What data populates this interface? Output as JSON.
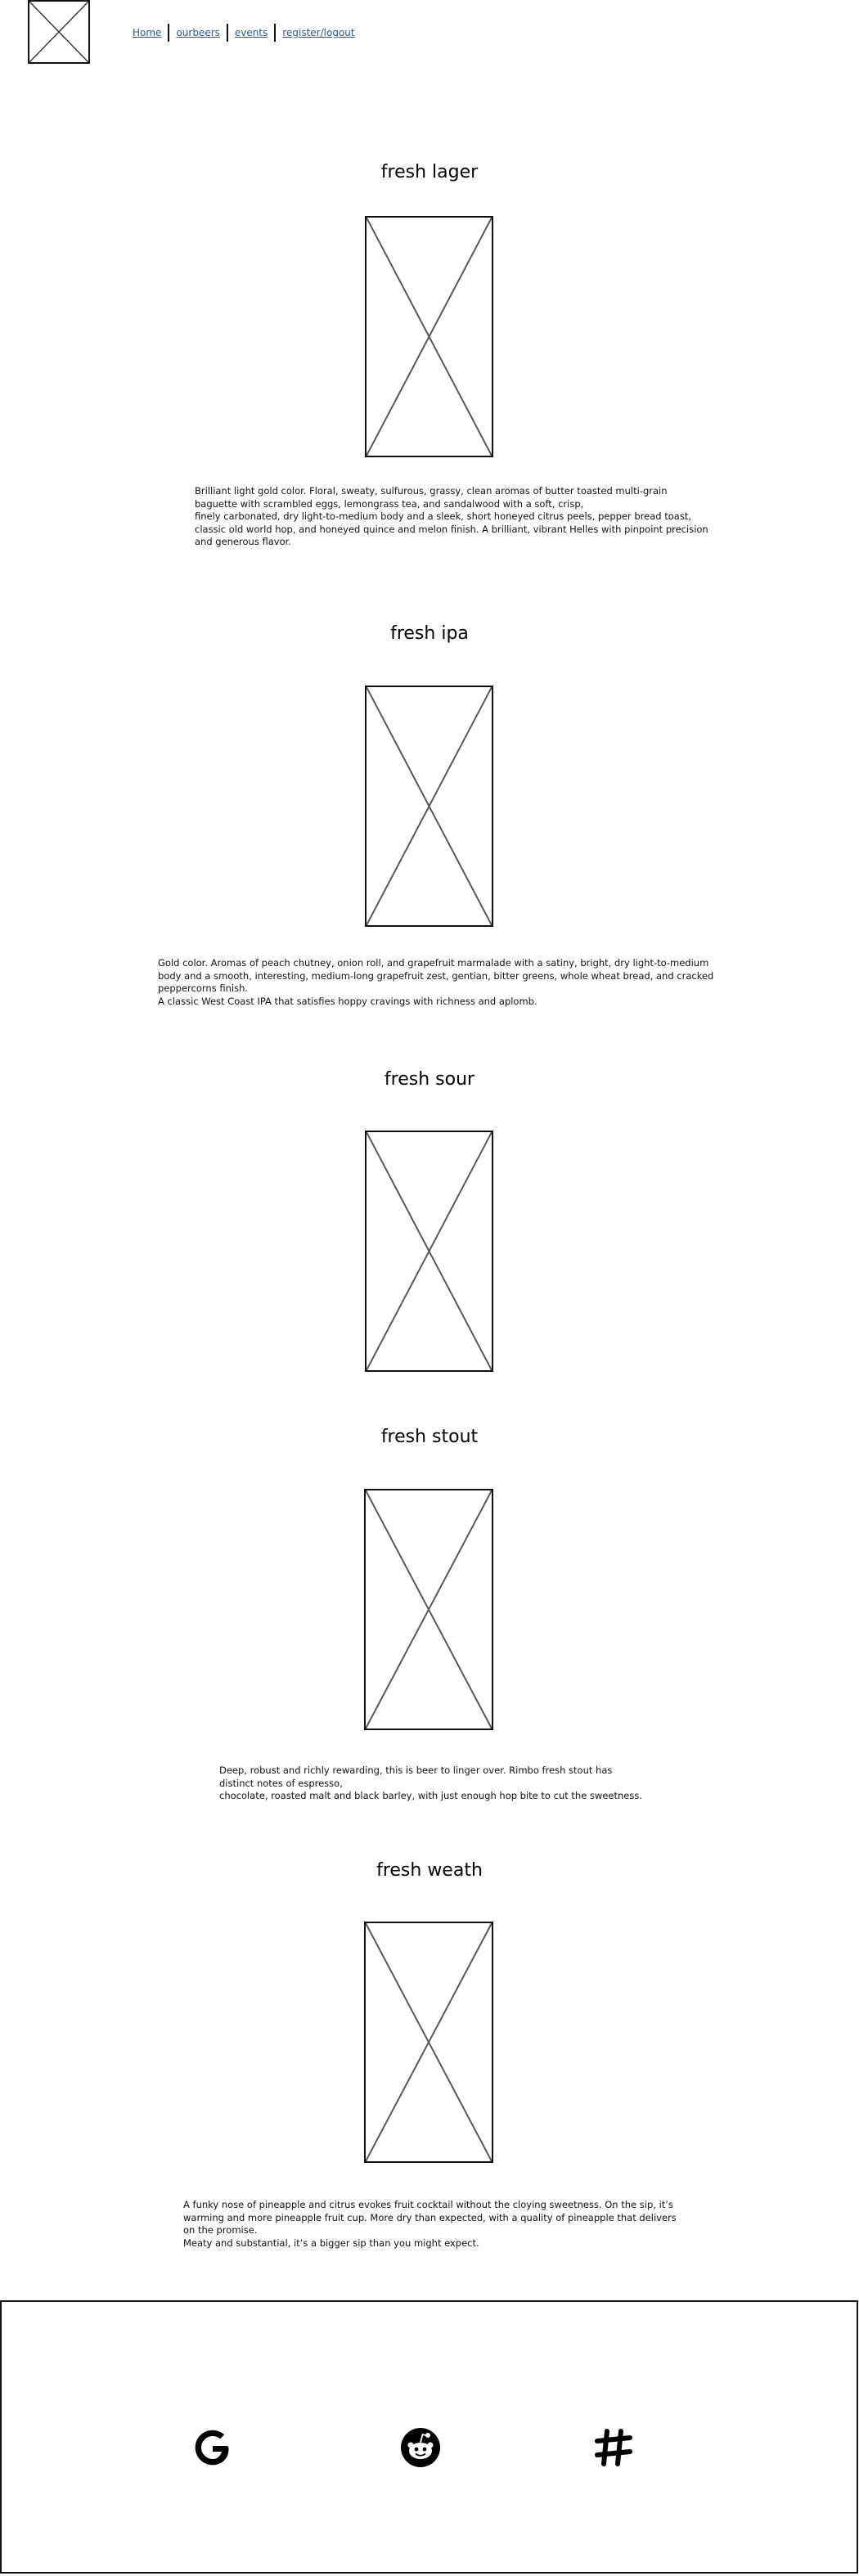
{
  "header": {
    "nav": [
      {
        "label": "Home"
      },
      {
        "label": "ourbeers"
      },
      {
        "label": "events"
      },
      {
        "label": "register/logout"
      }
    ]
  },
  "beers": [
    {
      "title": "fresh lager",
      "description": [
        "Brilliant light gold color. Floral, sweaty, sulfurous, grassy, clean aromas of butter toasted multi-grain baguette with scrambled eggs, lemongrass tea, and sandalwood with a soft, crisp,",
        "finely carbonated, dry light-to-medium body and a sleek, short honeyed citrus peels, pepper bread toast, classic old world hop, and honeyed quince and melon finish. A brilliant, vibrant Helles with pinpoint precision and generous flavor."
      ]
    },
    {
      "title": "fresh ipa",
      "description": [
        "Gold color. Aromas of peach chutney, onion roll, and grapefruit marmalade with a satiny, bright, dry light-to-medium body and a smooth, interesting, medium-long grapefruit zest, gentian, bitter greens, whole wheat bread, and cracked peppercorns finish.",
        "A classic West Coast IPA that satisfies hoppy cravings with richness and aplomb."
      ]
    },
    {
      "title": "fresh sour",
      "description": []
    },
    {
      "title": "fresh stout",
      "description": [
        "Deep, robust and richly rewarding, this is beer to linger over. Rimbo fresh stout has distinct notes of espresso,",
        "chocolate, roasted malt and black barley, with just enough hop bite to cut the sweetness."
      ]
    },
    {
      "title": "fresh weath",
      "description": [
        "A funky nose of pineapple and citrus evokes fruit cocktail without the cloying sweetness. On the sip, it’s warming and more pineapple fruit cup. More dry than expected, with a quality of pineapple that delivers on the promise.",
        "Meaty and substantial, it’s a bigger sip than you might expect."
      ]
    }
  ],
  "footer": {
    "social_icons": [
      "google-icon",
      "reddit-icon",
      "slack-icon"
    ]
  }
}
